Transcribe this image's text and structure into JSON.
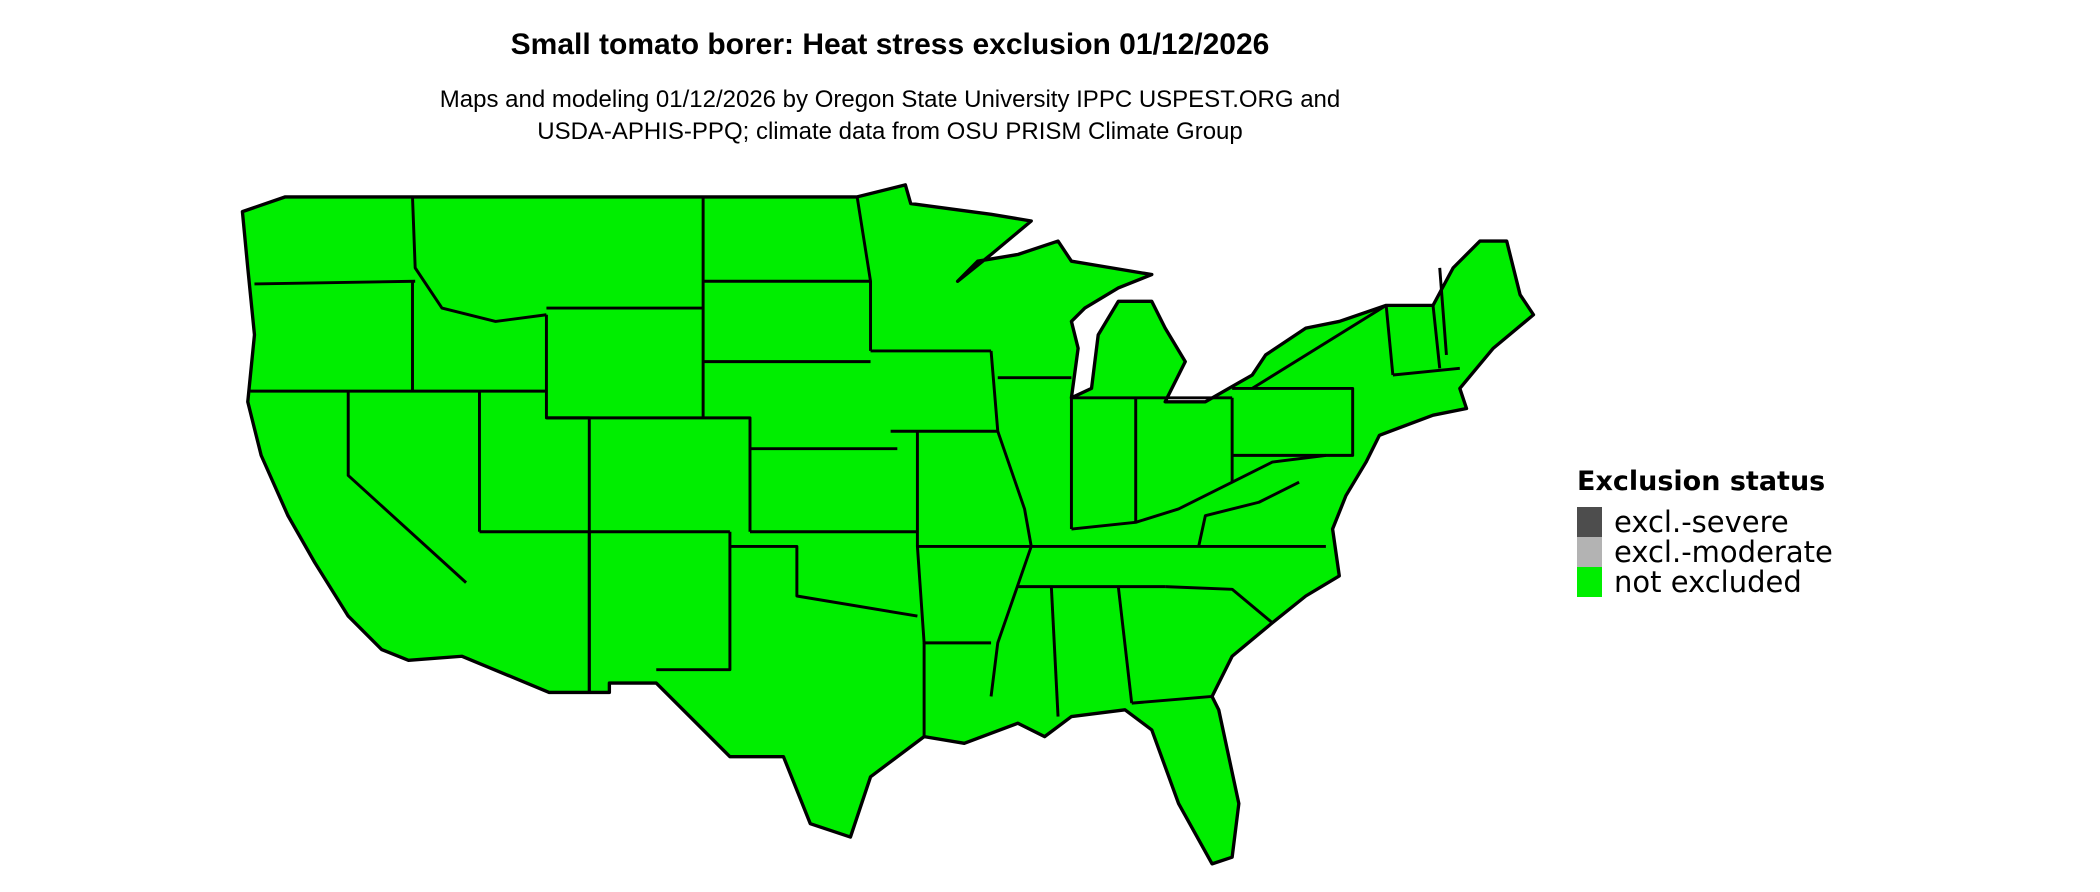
{
  "title": "Small tomato borer: Heat stress exclusion 01/12/2026",
  "subtitle_line1": "Maps and modeling 01/12/2026 by Oregon State University IPPC USPEST.ORG and",
  "subtitle_line2": "USDA-APHIS-PPQ; climate data from OSU PRISM Climate Group",
  "map": {
    "region": "contiguous United States",
    "fill_status": "not excluded",
    "outline_color": "#000000"
  },
  "legend": {
    "title": "Exclusion status",
    "items": [
      {
        "label": "excl.-severe",
        "color": "#4d4d4d"
      },
      {
        "label": "excl.-moderate",
        "color": "#b3b3b3"
      },
      {
        "label": "not excluded",
        "color": "#00ee00"
      }
    ]
  }
}
